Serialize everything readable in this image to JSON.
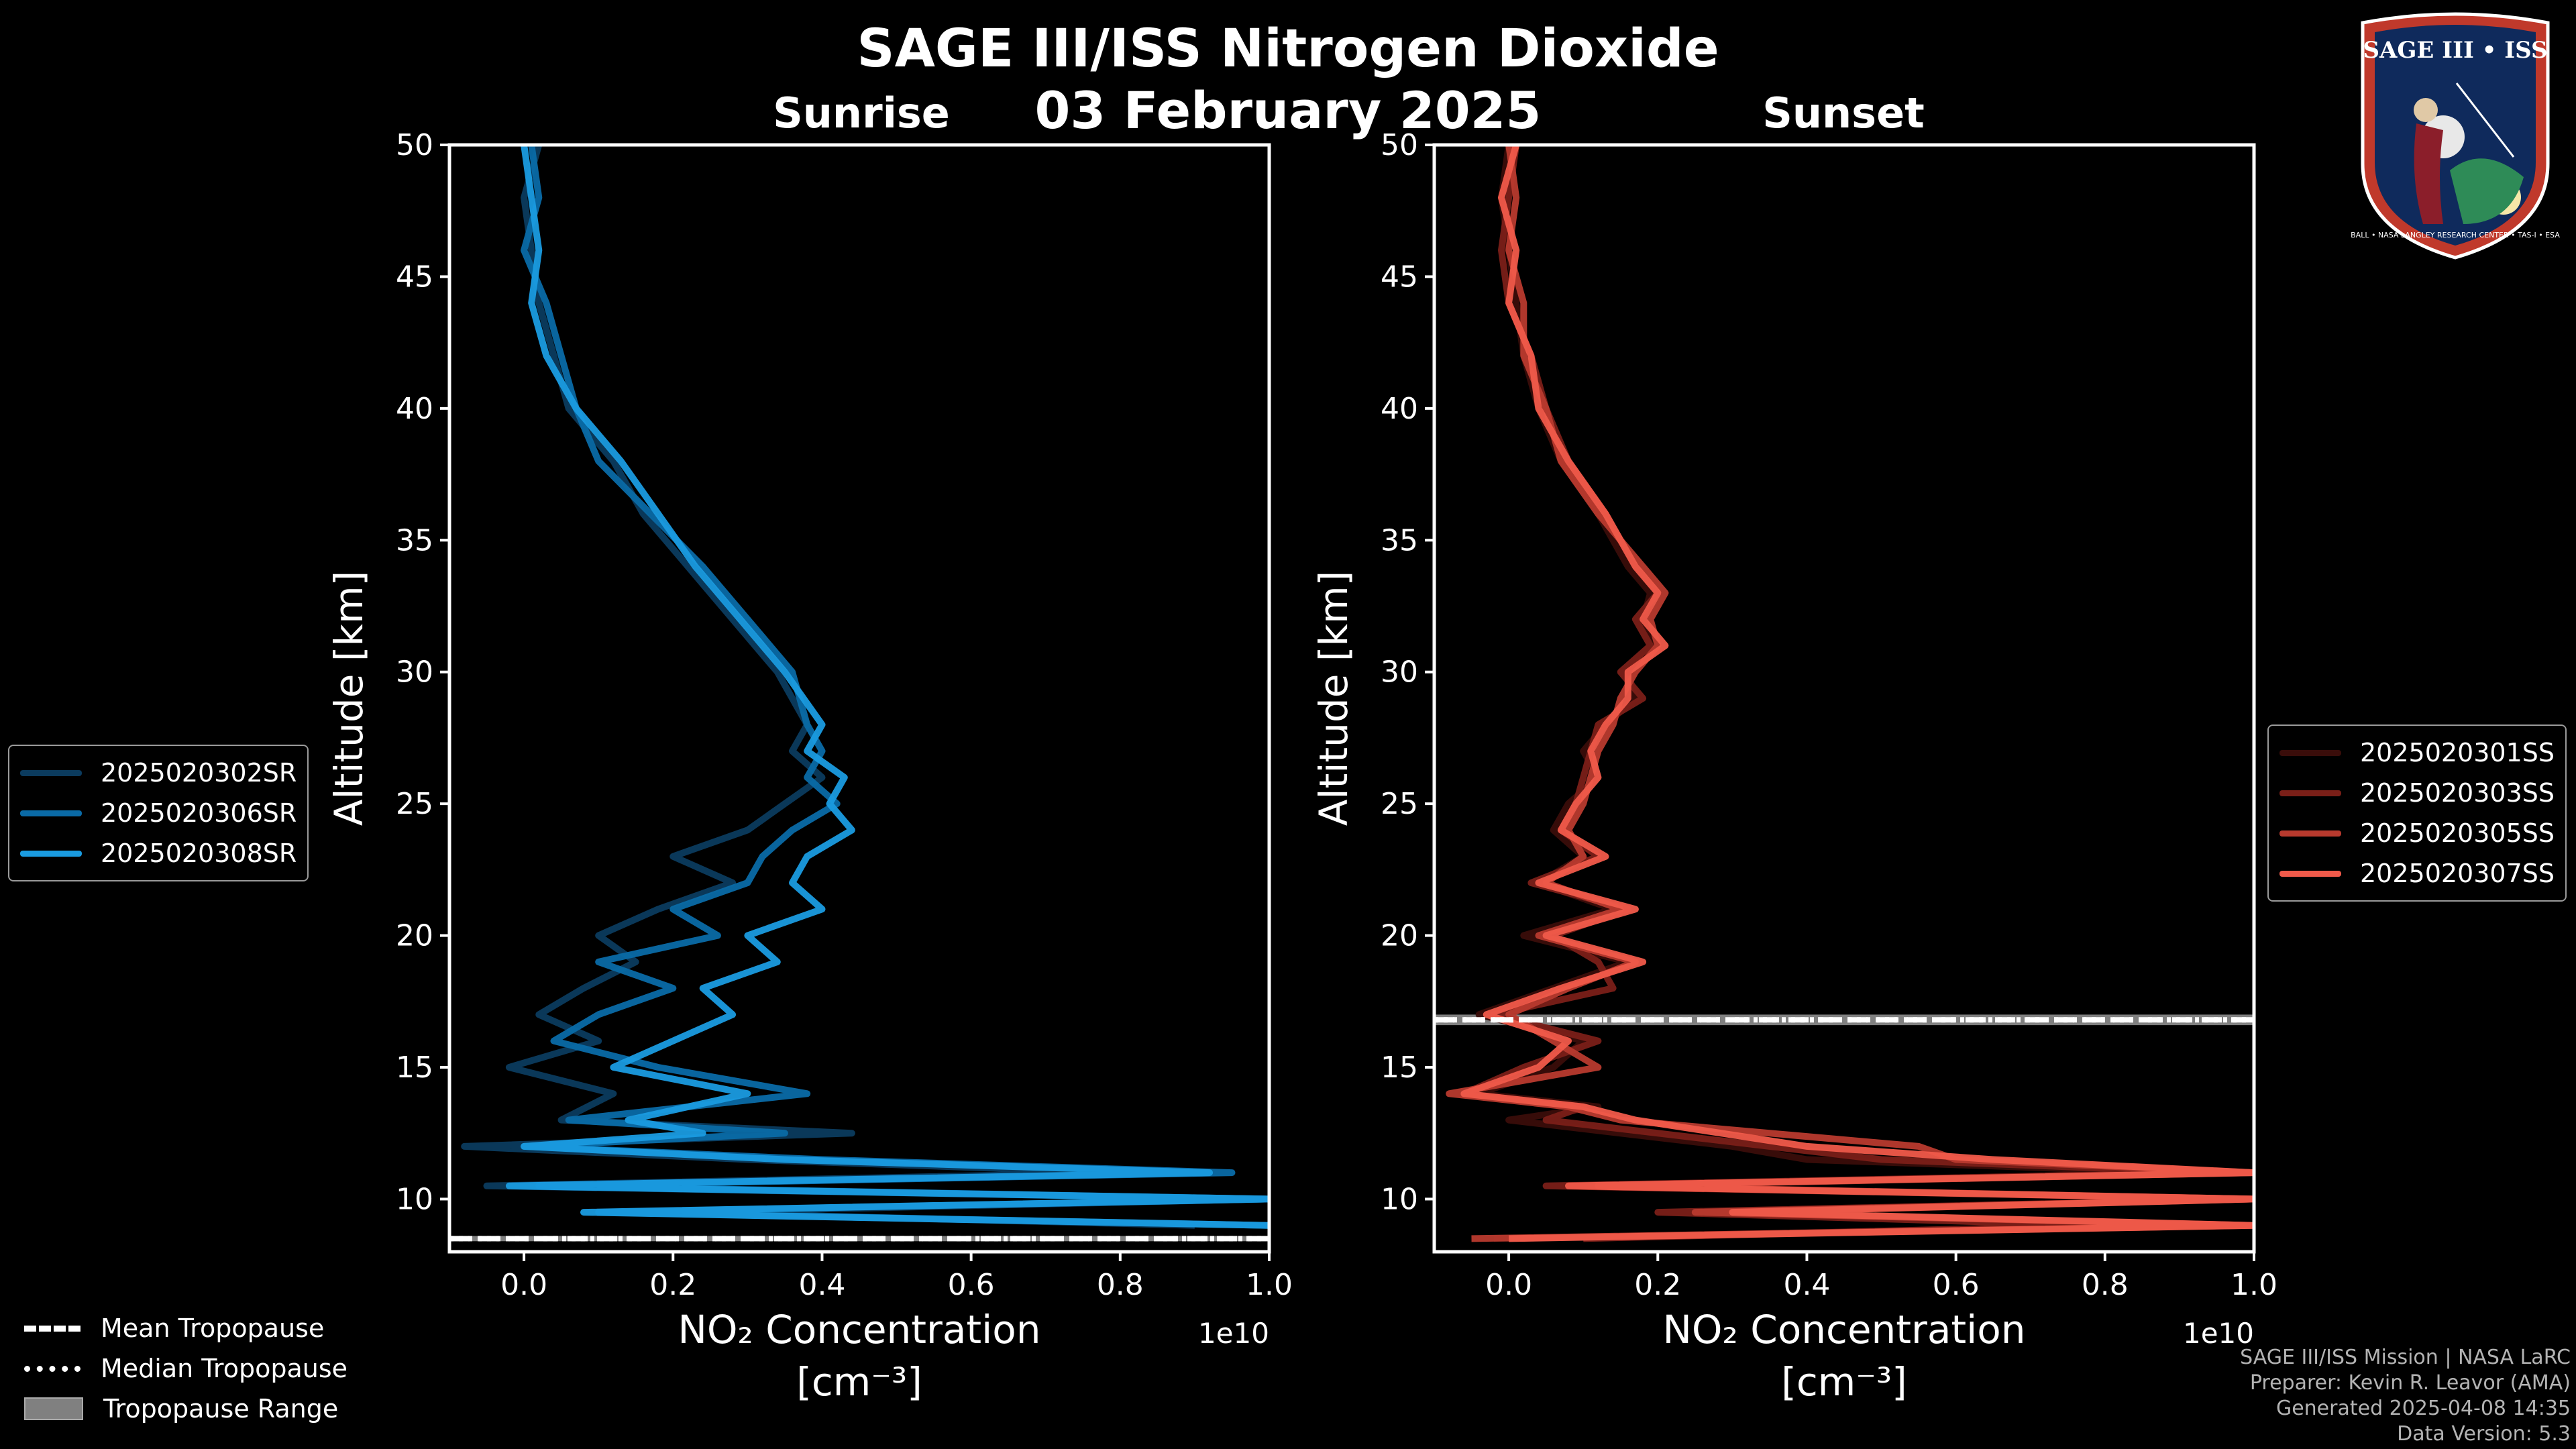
{
  "header": {
    "title": "SAGE III/ISS Nitrogen Dioxide",
    "date": "03 February 2025",
    "left_panel": "Sunrise",
    "right_panel": "Sunset"
  },
  "logo": {
    "text": "SAGE III • ISS",
    "ring_text": "BALL • NASA LANGLEY RESEARCH CENTER • TAS-I • ESA"
  },
  "colors": {
    "background": "#000000",
    "sunrise_series": [
      "#0b3b5e",
      "#0a6aa6",
      "#1a9be0"
    ],
    "sunset_series": [
      "#3a0d0a",
      "#7a1f18",
      "#b83a2e",
      "#f05a4a"
    ],
    "tropopause_range": "#808080"
  },
  "tropopause_legend": {
    "mean": "Mean Tropopause",
    "median": "Median Tropopause",
    "range": "Tropopause Range"
  },
  "credits": {
    "line1": "SAGE III/ISS Mission | NASA LaRC",
    "line2": "Preparer: Kevin R. Leavor (AMA)",
    "line3": "Generated 2025-04-08 14:35",
    "line4": "Data Version: 5.3"
  },
  "chart_data": [
    {
      "type": "line",
      "panel": "Sunrise",
      "xlabel": "NO₂ Concentration",
      "xunit": "[cm⁻³]",
      "ylabel": "Altitude [km]",
      "xlim": [
        -0.1,
        1.0
      ],
      "ylim": [
        8.0,
        50.0
      ],
      "x_scale_label": "1e10",
      "x_ticks": [
        "0.0",
        "0.2",
        "0.4",
        "0.6",
        "0.8",
        "1.0"
      ],
      "y_ticks": [
        "10",
        "15",
        "20",
        "25",
        "30",
        "35",
        "40",
        "45",
        "50"
      ],
      "tropopause": {
        "mean": 8.5,
        "median": 8.5,
        "range": [
          8.4,
          8.6
        ]
      },
      "altitudes": [
        50,
        48,
        46,
        44,
        42,
        40,
        38,
        36,
        34,
        32,
        30,
        28,
        27,
        26,
        25,
        24,
        23,
        22,
        21,
        20,
        19,
        18,
        17,
        16,
        15,
        14,
        13,
        12.5,
        12,
        11.5,
        11,
        10.5,
        10,
        9.5,
        9
      ],
      "series": [
        {
          "name": "2025020302SR",
          "values": [
            0.02,
            0.0,
            0.01,
            0.02,
            0.04,
            0.06,
            0.12,
            0.16,
            0.22,
            0.28,
            0.34,
            0.38,
            0.36,
            0.4,
            0.35,
            0.3,
            0.2,
            0.28,
            0.18,
            0.1,
            0.15,
            0.08,
            0.02,
            0.1,
            -0.02,
            0.12,
            0.05,
            0.44,
            -0.08,
            0.3,
            0.8,
            -0.05,
            1.0,
            0.2,
            0.9
          ]
        },
        {
          "name": "2025020306SR",
          "values": [
            0.01,
            0.02,
            0.0,
            0.03,
            0.05,
            0.07,
            0.1,
            0.17,
            0.24,
            0.3,
            0.36,
            0.38,
            0.4,
            0.38,
            0.42,
            0.36,
            0.32,
            0.3,
            0.2,
            0.26,
            0.1,
            0.2,
            0.1,
            0.04,
            0.18,
            0.38,
            0.06,
            0.35,
            0.0,
            0.4,
            0.95,
            0.02,
            1.0,
            0.1,
            1.0
          ]
        },
        {
          "name": "2025020308SR",
          "values": [
            0.0,
            0.01,
            0.02,
            0.01,
            0.03,
            0.07,
            0.13,
            0.18,
            0.23,
            0.29,
            0.35,
            0.4,
            0.38,
            0.43,
            0.41,
            0.44,
            0.38,
            0.36,
            0.4,
            0.3,
            0.34,
            0.24,
            0.28,
            0.2,
            0.12,
            0.3,
            0.14,
            0.24,
            0.0,
            0.35,
            0.92,
            -0.02,
            1.0,
            0.08,
            1.0
          ]
        }
      ]
    },
    {
      "type": "line",
      "panel": "Sunset",
      "xlabel": "NO₂ Concentration",
      "xunit": "[cm⁻³]",
      "ylabel": "Altitude [km]",
      "xlim": [
        -0.1,
        1.0
      ],
      "ylim": [
        8.0,
        50.0
      ],
      "x_scale_label": "1e10",
      "x_ticks": [
        "0.0",
        "0.2",
        "0.4",
        "0.6",
        "0.8",
        "1.0"
      ],
      "y_ticks": [
        "10",
        "15",
        "20",
        "25",
        "30",
        "35",
        "40",
        "45",
        "50"
      ],
      "tropopause": {
        "mean": 16.8,
        "median": 16.8,
        "range": [
          16.6,
          17.0
        ]
      },
      "altitudes": [
        50,
        48,
        46,
        44,
        42,
        40,
        38,
        36,
        34,
        33,
        32,
        31,
        30,
        29,
        28,
        27,
        26,
        25,
        24,
        23,
        22,
        21,
        20,
        19,
        18,
        17,
        16,
        15,
        14,
        13.5,
        13,
        12,
        11.5,
        11,
        10.5,
        10,
        9.5,
        9,
        8.5
      ],
      "series": [
        {
          "name": "2025020301SS",
          "values": [
            0.0,
            -0.01,
            0.0,
            0.01,
            0.02,
            0.04,
            0.07,
            0.12,
            0.16,
            0.19,
            0.18,
            0.2,
            0.16,
            0.17,
            0.13,
            0.1,
            0.12,
            0.08,
            0.06,
            0.1,
            0.04,
            0.14,
            0.02,
            0.16,
            0.06,
            -0.04,
            0.1,
            0.06,
            -0.04,
            0.12,
            0.0,
            0.3,
            0.4,
            0.9,
            0.1,
            1.0,
            0.3,
            0.9,
            -0.02
          ]
        },
        {
          "name": "2025020303SS",
          "values": [
            0.01,
            0.0,
            -0.01,
            0.0,
            0.03,
            0.05,
            0.08,
            0.13,
            0.17,
            0.2,
            0.17,
            0.19,
            0.15,
            0.18,
            0.12,
            0.11,
            0.1,
            0.09,
            0.07,
            0.12,
            0.03,
            0.16,
            0.06,
            0.12,
            0.14,
            -0.02,
            0.12,
            0.02,
            -0.06,
            0.1,
            0.05,
            0.35,
            0.5,
            0.95,
            0.05,
            1.0,
            0.2,
            0.8,
            0.1
          ]
        },
        {
          "name": "2025020305SS",
          "values": [
            0.0,
            0.01,
            0.0,
            0.02,
            0.02,
            0.05,
            0.07,
            0.12,
            0.18,
            0.21,
            0.19,
            0.2,
            0.17,
            0.15,
            0.14,
            0.12,
            0.11,
            0.1,
            0.08,
            0.1,
            0.05,
            0.15,
            0.04,
            0.17,
            0.08,
            0.0,
            0.06,
            0.12,
            -0.08,
            0.08,
            0.15,
            0.55,
            0.6,
            1.0,
            0.12,
            1.0,
            0.25,
            1.0,
            -0.05
          ]
        },
        {
          "name": "2025020307SS",
          "values": [
            0.01,
            -0.01,
            0.01,
            0.0,
            0.03,
            0.04,
            0.08,
            0.13,
            0.17,
            0.2,
            0.18,
            0.21,
            0.16,
            0.16,
            0.13,
            0.11,
            0.12,
            0.09,
            0.07,
            0.13,
            0.04,
            0.17,
            0.05,
            0.18,
            0.07,
            -0.03,
            0.08,
            0.04,
            -0.06,
            0.1,
            0.17,
            0.4,
            0.65,
            1.0,
            0.08,
            1.0,
            0.3,
            1.0,
            0.0
          ]
        }
      ]
    }
  ]
}
